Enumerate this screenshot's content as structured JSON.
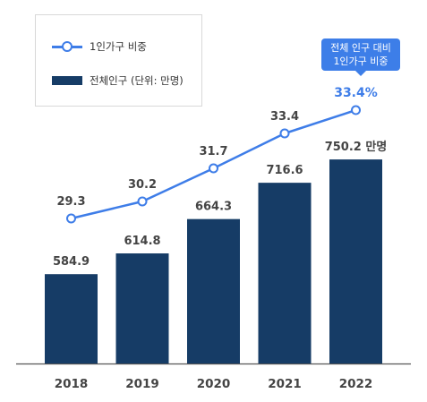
{
  "legend": {
    "line_label": "1인가구 비중",
    "bar_label": "전체인구 (단위: 만명)"
  },
  "callout": {
    "line1": "전체 인구 대비",
    "line2": "1인가구 비중"
  },
  "colors": {
    "bar": "#163c66",
    "line": "#3e7de8",
    "highlight": "#3e7de8",
    "label": "#444444",
    "axis": "#555555"
  },
  "chart_data": {
    "type": "bar",
    "categories": [
      "2018",
      "2019",
      "2020",
      "2021",
      "2022"
    ],
    "series": [
      {
        "name": "전체인구 (단위: 만명)",
        "type": "bar",
        "values": [
          584.9,
          614.8,
          664.3,
          716.6,
          750.2
        ],
        "labels": [
          "584.9",
          "614.8",
          "664.3",
          "716.6",
          "750.2 만명"
        ]
      },
      {
        "name": "1인가구 비중",
        "type": "line",
        "values": [
          29.3,
          30.2,
          31.7,
          33.4,
          33.4
        ],
        "labels": [
          "29.3",
          "30.2",
          "31.7",
          "33.4",
          "33.4%"
        ]
      }
    ],
    "grid": false,
    "legend_position": "top-left"
  }
}
